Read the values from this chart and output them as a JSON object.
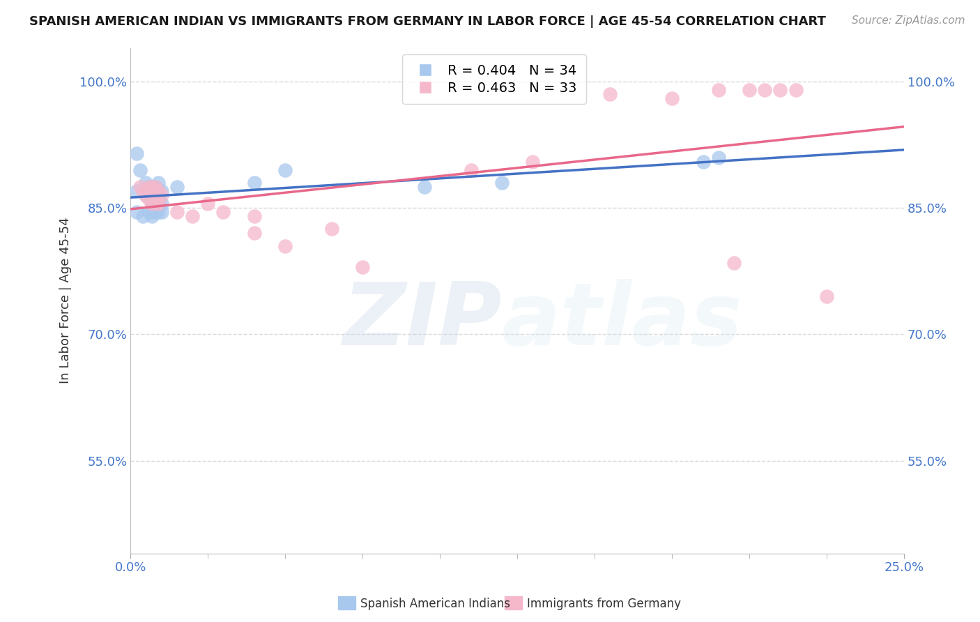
{
  "title": "SPANISH AMERICAN INDIAN VS IMMIGRANTS FROM GERMANY IN LABOR FORCE | AGE 45-54 CORRELATION CHART",
  "source": "Source: ZipAtlas.com",
  "ylabel": "In Labor Force | Age 45-54",
  "xlim": [
    0.0,
    0.25
  ],
  "ylim": [
    0.44,
    1.04
  ],
  "y_ticks": [
    0.55,
    0.7,
    0.85,
    1.0
  ],
  "y_tick_labels": [
    "55.0%",
    "70.0%",
    "85.0%",
    "100.0%"
  ],
  "x_ticks": [
    0.0,
    0.25
  ],
  "x_tick_labels": [
    "0.0%",
    "25.0%"
  ],
  "blue_R": 0.404,
  "blue_N": 34,
  "pink_R": 0.463,
  "pink_N": 33,
  "legend_labels": [
    "Spanish American Indians",
    "Immigrants from Germany"
  ],
  "blue_color": "#a8c8ee",
  "pink_color": "#f5b8cb",
  "blue_line_color": "#4472c4",
  "pink_line_color": "#e8688a",
  "watermark_zip": "ZIP",
  "watermark_atlas": "atlas",
  "blue_scatter_x": [
    0.002,
    0.002,
    0.002,
    0.003,
    0.004,
    0.005,
    0.005,
    0.006,
    0.006,
    0.006,
    0.007,
    0.007,
    0.007,
    0.007,
    0.007,
    0.008,
    0.008,
    0.008,
    0.008,
    0.009,
    0.009,
    0.009,
    0.009,
    0.009,
    0.01,
    0.01,
    0.01,
    0.015,
    0.04,
    0.05,
    0.095,
    0.12,
    0.185,
    0.19
  ],
  "blue_scatter_y": [
    0.915,
    0.87,
    0.845,
    0.895,
    0.84,
    0.865,
    0.88,
    0.845,
    0.865,
    0.875,
    0.84,
    0.845,
    0.855,
    0.87,
    0.875,
    0.845,
    0.855,
    0.865,
    0.875,
    0.845,
    0.855,
    0.86,
    0.87,
    0.88,
    0.845,
    0.855,
    0.87,
    0.875,
    0.88,
    0.895,
    0.875,
    0.88,
    0.905,
    0.91
  ],
  "pink_scatter_x": [
    0.003,
    0.004,
    0.005,
    0.006,
    0.006,
    0.007,
    0.007,
    0.007,
    0.008,
    0.008,
    0.009,
    0.009,
    0.01,
    0.015,
    0.02,
    0.025,
    0.03,
    0.04,
    0.04,
    0.05,
    0.065,
    0.075,
    0.11,
    0.13,
    0.155,
    0.175,
    0.19,
    0.195,
    0.2,
    0.205,
    0.21,
    0.215,
    0.225
  ],
  "pink_scatter_y": [
    0.875,
    0.87,
    0.865,
    0.86,
    0.875,
    0.855,
    0.865,
    0.875,
    0.86,
    0.875,
    0.855,
    0.87,
    0.865,
    0.845,
    0.84,
    0.855,
    0.845,
    0.82,
    0.84,
    0.805,
    0.825,
    0.78,
    0.895,
    0.905,
    0.985,
    0.98,
    0.99,
    0.785,
    0.99,
    0.99,
    0.99,
    0.99,
    0.745
  ],
  "background_color": "#ffffff",
  "grid_color": "#d8d8d8",
  "tick_color": "#4477cc",
  "title_fontsize": 13,
  "source_fontsize": 11,
  "axis_label_fontsize": 13,
  "tick_fontsize": 13,
  "legend_fontsize": 14
}
